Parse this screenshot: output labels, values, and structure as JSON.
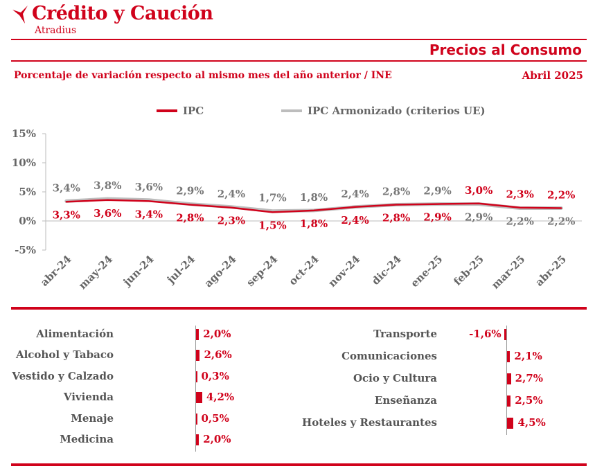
{
  "header": {
    "brand_name": "Crédito y Caución",
    "brand_sub": "Atradius",
    "page_title": "Precios al Consumo",
    "subtitle": "Porcentaje de variación respecto al mismo mes del año anterior / INE",
    "period": "Abril  2025"
  },
  "colors": {
    "accent": "#d0021b",
    "secondary": "#bdbdbd",
    "text": "#555555"
  },
  "chart_data": [
    {
      "type": "line",
      "x": [
        "abr-24",
        "may-24",
        "jun-24",
        "jul-24",
        "ago-24",
        "sep-24",
        "oct-24",
        "nov-24",
        "dic-24",
        "ene-25",
        "feb-25",
        "mar-25",
        "abr-25"
      ],
      "series": [
        {
          "name": "IPC",
          "color": "#d0021b",
          "values": [
            3.3,
            3.6,
            3.4,
            2.8,
            2.3,
            1.5,
            1.8,
            2.4,
            2.8,
            2.9,
            3.0,
            2.3,
            2.2
          ],
          "labels": [
            "3,3%",
            "3,6%",
            "3,4%",
            "2,8%",
            "2,3%",
            "1,5%",
            "1,8%",
            "2,4%",
            "2,8%",
            "2,9%",
            "3,0%",
            "2,3%",
            "2,2%"
          ]
        },
        {
          "name": "IPC Armonizado (criterios UE)",
          "color": "#bdbdbd",
          "values": [
            3.4,
            3.8,
            3.6,
            2.9,
            2.4,
            1.7,
            1.8,
            2.4,
            2.8,
            2.9,
            2.9,
            2.2,
            2.2
          ],
          "labels": [
            "3,4%",
            "3,8%",
            "3,6%",
            "2,9%",
            "2,4%",
            "1,7%",
            "1,8%",
            "2,4%",
            "2,8%",
            "2,9%",
            "2,9%",
            "2,2%",
            "2,2%"
          ]
        }
      ],
      "ylim": [
        -5,
        15
      ],
      "yticks": [
        -5,
        0,
        5,
        10,
        15
      ],
      "ytick_labels": [
        "-5%",
        "0%",
        "5%",
        "10%",
        "15%"
      ],
      "grid": false,
      "legend": "top"
    },
    {
      "type": "bar",
      "orientation": "horizontal",
      "categories": [
        "Alimentación",
        "Alcohol y Tabaco",
        "Vestido y Calzado",
        "Vivienda",
        "Menaje",
        "Medicina"
      ],
      "values": [
        2.0,
        2.6,
        0.3,
        4.2,
        0.5,
        2.0
      ],
      "labels": [
        "2,0%",
        "2,6%",
        "0,3%",
        "4,2%",
        "0,5%",
        "2,0%"
      ]
    },
    {
      "type": "bar",
      "orientation": "horizontal",
      "categories": [
        "Transporte",
        "Comunicaciones",
        "Ocio y Cultura",
        "Enseñanza",
        "Hoteles y Restaurantes"
      ],
      "values": [
        -1.6,
        2.1,
        2.7,
        2.5,
        4.5
      ],
      "labels": [
        "-1,6%",
        "2,1%",
        "2,7%",
        "2,5%",
        "4,5%"
      ]
    }
  ]
}
